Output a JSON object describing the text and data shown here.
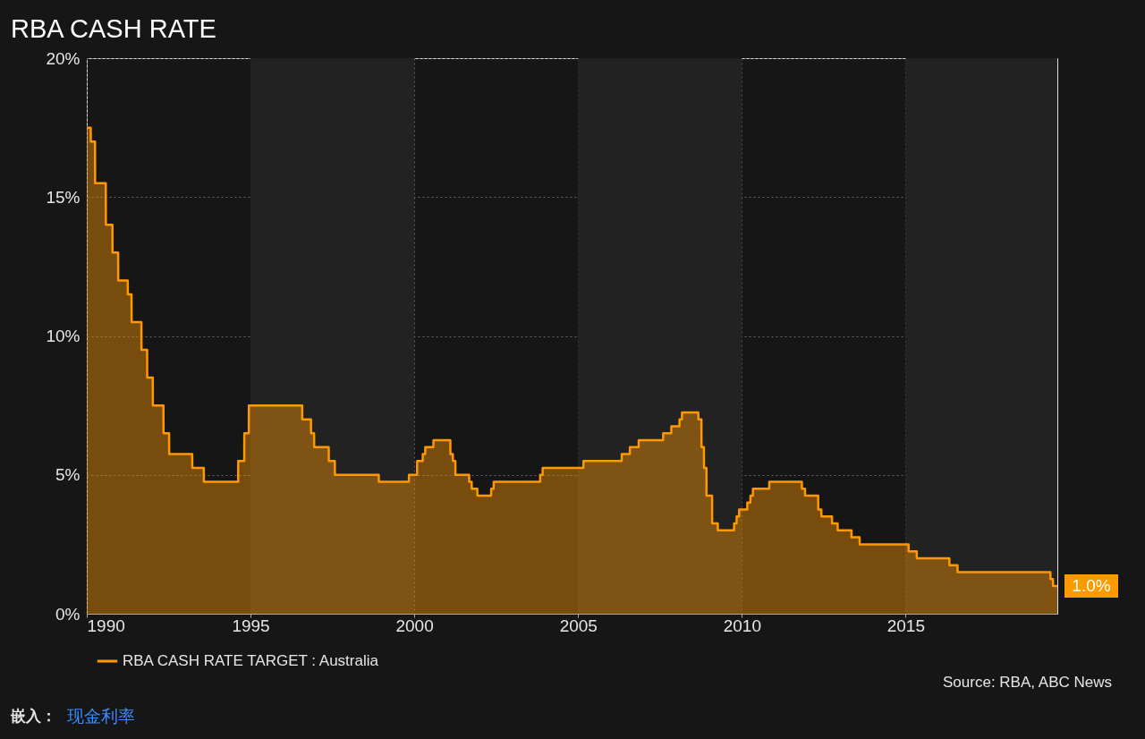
{
  "chart_data": {
    "type": "area",
    "title": "RBA CASH RATE",
    "x": [
      "1990-01-01",
      "1990-02-14",
      "1990-02-15",
      "1990-04-03",
      "1990-04-04",
      "1990-08-01",
      "1990-08-02",
      "1990-10-14",
      "1990-10-15",
      "1990-12-17",
      "1990-12-18",
      "1991-04-03",
      "1991-04-04",
      "1991-05-15",
      "1991-05-16",
      "1991-09-02",
      "1991-09-03",
      "1991-11-05",
      "1991-11-06",
      "1992-01-07",
      "1992-01-08",
      "1992-05-05",
      "1992-05-06",
      "1992-07-07",
      "1992-07-08",
      "1993-03-22",
      "1993-03-23",
      "1993-07-29",
      "1993-07-30",
      "1994-08-16",
      "1994-08-17",
      "1994-10-23",
      "1994-10-24",
      "1994-12-13",
      "1994-12-14",
      "1996-07-30",
      "1996-07-31",
      "1996-11-05",
      "1996-11-06",
      "1996-12-10",
      "1996-12-11",
      "1997-05-22",
      "1997-05-23",
      "1997-07-29",
      "1997-07-30",
      "1998-12-01",
      "1998-12-02",
      "1999-11-02",
      "1999-11-03",
      "2000-02-01",
      "2000-02-02",
      "2000-04-04",
      "2000-04-05",
      "2000-05-02",
      "2000-05-03",
      "2000-08-01",
      "2000-08-02",
      "2001-02-06",
      "2001-02-07",
      "2001-03-06",
      "2001-03-07",
      "2001-04-03",
      "2001-04-04",
      "2001-09-04",
      "2001-09-05",
      "2001-10-02",
      "2001-10-03",
      "2001-12-04",
      "2001-12-05",
      "2002-05-07",
      "2002-05-08",
      "2002-06-04",
      "2002-06-05",
      "2003-11-04",
      "2003-11-05",
      "2003-12-02",
      "2003-12-03",
      "2005-03-01",
      "2005-03-02",
      "2006-05-02",
      "2006-05-03",
      "2006-08-01",
      "2006-08-02",
      "2006-11-07",
      "2006-11-08",
      "2007-08-07",
      "2007-08-08",
      "2007-11-06",
      "2007-11-07",
      "2008-02-05",
      "2008-02-06",
      "2008-03-04",
      "2008-03-05",
      "2008-09-02",
      "2008-09-03",
      "2008-10-07",
      "2008-10-08",
      "2008-11-04",
      "2008-11-05",
      "2008-12-02",
      "2008-12-03",
      "2009-02-03",
      "2009-02-04",
      "2009-04-07",
      "2009-04-08",
      "2009-10-06",
      "2009-10-07",
      "2009-11-03",
      "2009-11-04",
      "2009-12-01",
      "2009-12-02",
      "2010-03-02",
      "2010-03-03",
      "2010-04-06",
      "2010-04-07",
      "2010-05-04",
      "2010-05-05",
      "2010-11-02",
      "2010-11-03",
      "2011-11-01",
      "2011-11-02",
      "2011-12-06",
      "2011-12-07",
      "2012-05-01",
      "2012-05-02",
      "2012-06-05",
      "2012-06-06",
      "2012-10-02",
      "2012-10-03",
      "2012-12-04",
      "2012-12-05",
      "2013-05-07",
      "2013-05-08",
      "2013-08-06",
      "2013-08-07",
      "2015-02-03",
      "2015-02-04",
      "2015-05-05",
      "2015-05-06",
      "2016-05-03",
      "2016-05-04",
      "2016-08-02",
      "2016-08-03",
      "2019-06-04",
      "2019-06-05",
      "2019-07-02",
      "2019-07-03",
      "2019-08-20"
    ],
    "series": [
      {
        "name": "RBA CASH RATE TARGET : Australia",
        "color": "#ff9900",
        "values": [
          17.5,
          17.5,
          17.0,
          17.0,
          15.5,
          15.5,
          14.0,
          14.0,
          13.0,
          13.0,
          12.0,
          12.0,
          11.5,
          11.5,
          10.5,
          10.5,
          9.5,
          9.5,
          8.5,
          8.5,
          7.5,
          7.5,
          6.5,
          6.5,
          5.75,
          5.75,
          5.25,
          5.25,
          4.75,
          4.75,
          5.5,
          5.5,
          6.5,
          6.5,
          7.5,
          7.5,
          7.0,
          7.0,
          6.5,
          6.5,
          6.0,
          6.0,
          5.5,
          5.5,
          5.0,
          5.0,
          4.75,
          4.75,
          5.0,
          5.0,
          5.5,
          5.5,
          5.75,
          5.75,
          6.0,
          6.0,
          6.25,
          6.25,
          5.75,
          5.75,
          5.5,
          5.5,
          5.0,
          5.0,
          4.75,
          4.75,
          4.5,
          4.5,
          4.25,
          4.25,
          4.5,
          4.5,
          4.75,
          4.75,
          5.0,
          5.0,
          5.25,
          5.25,
          5.5,
          5.5,
          5.75,
          5.75,
          6.0,
          6.0,
          6.25,
          6.25,
          6.5,
          6.5,
          6.75,
          6.75,
          7.0,
          7.0,
          7.25,
          7.25,
          7.0,
          7.0,
          6.0,
          6.0,
          5.25,
          5.25,
          4.25,
          4.25,
          3.25,
          3.25,
          3.0,
          3.0,
          3.25,
          3.25,
          3.5,
          3.5,
          3.75,
          3.75,
          4.0,
          4.0,
          4.25,
          4.25,
          4.5,
          4.5,
          4.75,
          4.75,
          4.5,
          4.5,
          4.25,
          4.25,
          3.75,
          3.75,
          3.5,
          3.5,
          3.25,
          3.25,
          3.0,
          3.0,
          2.75,
          2.75,
          2.5,
          2.5,
          2.25,
          2.25,
          2.0,
          2.0,
          1.75,
          1.75,
          1.5,
          1.5,
          1.25,
          1.25,
          1.0,
          1.0
        ],
        "value_labels": [
          null,
          null,
          null,
          null,
          null,
          null,
          null,
          null,
          null,
          null,
          null,
          null,
          null,
          null,
          null,
          null,
          null,
          null,
          null,
          null,
          null,
          null,
          null,
          null,
          null,
          null,
          null,
          null,
          null,
          null,
          null,
          null,
          null,
          null,
          null,
          null,
          null,
          null,
          null,
          null,
          null,
          null,
          null,
          null,
          null,
          null,
          null,
          null,
          null,
          null,
          null,
          null,
          null,
          null,
          null,
          null,
          null,
          null,
          null,
          null,
          null,
          null,
          null,
          null,
          null,
          null,
          null,
          null,
          null,
          null,
          null,
          null,
          null,
          null,
          null,
          null,
          null,
          null,
          null,
          null,
          null,
          null,
          null,
          null,
          null,
          null,
          null,
          null,
          null,
          null,
          null,
          null,
          null,
          null,
          null,
          null,
          null,
          null,
          null,
          null,
          null,
          null,
          null,
          null,
          null,
          null,
          null,
          null,
          null,
          null,
          null,
          null,
          null,
          null,
          null,
          null,
          null,
          null,
          null,
          null,
          null,
          null,
          null,
          null,
          null,
          null,
          null,
          null,
          null,
          null,
          null,
          null,
          null,
          null,
          null,
          null,
          null,
          null,
          null,
          null,
          null,
          null,
          null,
          null,
          null,
          null,
          null,
          "1.0%"
        ]
      }
    ],
    "xlim": [
      "1990-01-01",
      "2019-08-20"
    ],
    "xticks": [
      {
        "value": "1990-01-01",
        "label": "1990"
      },
      {
        "value": "1995-01-01",
        "label": "1995"
      },
      {
        "value": "2000-01-01",
        "label": "2000"
      },
      {
        "value": "2005-01-01",
        "label": "2005"
      },
      {
        "value": "2010-01-01",
        "label": "2010"
      },
      {
        "value": "2015-01-01",
        "label": "2015"
      }
    ],
    "ylim": [
      0,
      20
    ],
    "yticks": [
      {
        "value": 0,
        "label": "0%"
      },
      {
        "value": 5,
        "label": "5%"
      },
      {
        "value": 10,
        "label": "10%"
      },
      {
        "value": 15,
        "label": "15%"
      },
      {
        "value": 20,
        "label": "20%"
      }
    ],
    "bands": [
      {
        "axis": "x",
        "from": "1995-01-01",
        "to": "2000-01-01",
        "color": "#222222"
      },
      {
        "axis": "x",
        "from": "2005-01-01",
        "to": "2010-01-01",
        "color": "#222222"
      },
      {
        "axis": "x",
        "from": "2015-01-01",
        "to": "2019-08-20",
        "color": "#222222"
      }
    ],
    "grid": true,
    "legend": "bottom left",
    "annotations": [
      "Source: RBA, ABC News",
      "嵌入：",
      "现金利率"
    ]
  }
}
